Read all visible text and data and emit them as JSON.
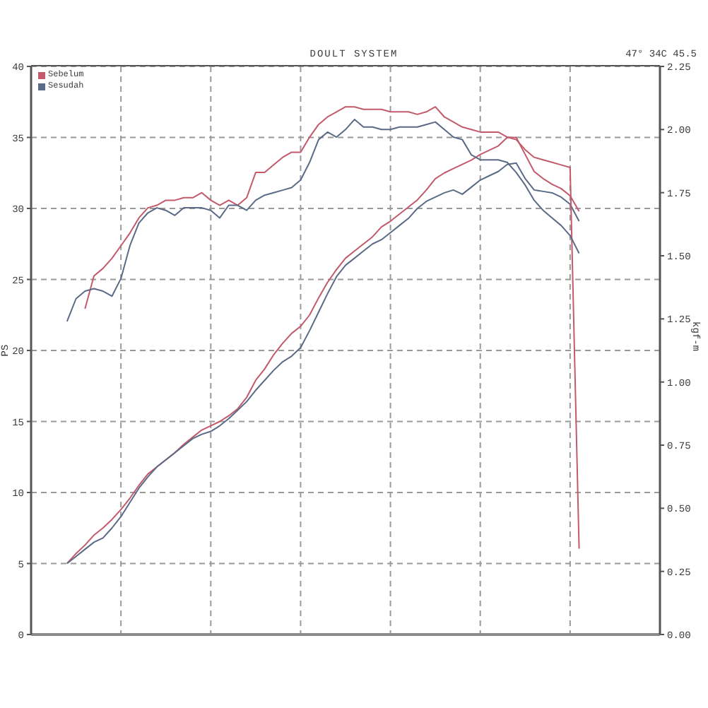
{
  "chart_data": {
    "type": "line",
    "title": "DOULT SYSTEM",
    "annotations": [
      "47° 34C 45.5"
    ],
    "ylabel": "PS",
    "y2label": "kgf-m",
    "categories": [
      null,
      null,
      null,
      null,
      null,
      null,
      null,
      null,
      null,
      null,
      null,
      null,
      null,
      null,
      null,
      null,
      null,
      null,
      null,
      null,
      null,
      null,
      null,
      null,
      null,
      null,
      null,
      null,
      null,
      null,
      null,
      null,
      null,
      null,
      null,
      null,
      null,
      null,
      null,
      null,
      null,
      null,
      null,
      null,
      null,
      null,
      null,
      null,
      null,
      null,
      null,
      null,
      null,
      null,
      null,
      null,
      null,
      null,
      null,
      null,
      null,
      null,
      null,
      null,
      null,
      null,
      null,
      null,
      null,
      null,
      null
    ],
    "series": [
      {
        "name": "Sebelum",
        "color": "#c25a6c",
        "values": [
          null,
          null,
          null,
          null,
          5.0,
          5.7,
          6.3,
          7.0,
          7.5,
          8.1,
          8.8,
          9.6,
          10.5,
          11.3,
          11.8,
          12.3,
          12.8,
          13.4,
          13.9,
          14.4,
          14.7,
          15.0,
          15.4,
          15.9,
          16.7,
          17.9,
          18.7,
          19.7,
          20.5,
          21.2,
          21.7,
          22.5,
          23.7,
          24.8,
          25.7,
          26.5,
          27.0,
          27.5,
          28.0,
          28.7,
          29.1,
          29.6,
          30.1,
          30.6,
          31.3,
          32.1,
          32.5,
          32.8,
          33.1,
          33.4,
          33.8,
          34.1,
          34.4,
          35.0,
          35.0,
          33.8,
          32.6,
          32.1,
          31.7,
          31.4,
          30.9,
          29.8,
          null,
          null,
          null,
          null,
          null,
          null,
          null,
          null,
          null
        ]
      },
      {
        "name": "Sesudah",
        "color": "#5b6a86",
        "values": [
          null,
          null,
          null,
          null,
          5.0,
          5.5,
          6.0,
          6.5,
          6.8,
          7.5,
          8.3,
          9.3,
          10.3,
          11.1,
          11.8,
          12.3,
          12.8,
          13.3,
          13.8,
          14.1,
          14.3,
          14.7,
          15.2,
          15.8,
          16.4,
          17.2,
          17.9,
          18.6,
          19.2,
          19.6,
          20.2,
          21.4,
          22.7,
          24.0,
          25.2,
          26.0,
          26.5,
          27.0,
          27.5,
          27.8,
          28.3,
          28.8,
          29.3,
          30.0,
          30.5,
          30.8,
          31.1,
          31.3,
          31.0,
          31.5,
          32.0,
          32.3,
          32.6,
          33.1,
          33.2,
          32.1,
          31.3,
          31.2,
          31.1,
          30.8,
          30.3,
          29.1,
          null,
          null,
          null,
          null,
          null,
          null,
          null,
          null,
          null
        ]
      },
      {
        "color": "#c25a6c",
        "axis": "y2",
        "values": [
          null,
          null,
          null,
          null,
          null,
          null,
          1.29,
          1.42,
          1.45,
          1.49,
          1.54,
          1.59,
          1.65,
          1.69,
          1.7,
          1.72,
          1.72,
          1.73,
          1.73,
          1.75,
          1.72,
          1.7,
          1.72,
          1.7,
          1.73,
          1.83,
          1.83,
          1.86,
          1.89,
          1.91,
          1.91,
          1.97,
          2.02,
          2.05,
          2.07,
          2.09,
          2.09,
          2.08,
          2.08,
          2.08,
          2.07,
          2.07,
          2.07,
          2.06,
          2.07,
          2.09,
          2.05,
          2.03,
          2.01,
          2.0,
          1.99,
          1.99,
          1.99,
          1.97,
          1.96,
          1.92,
          1.89,
          1.88,
          1.87,
          1.86,
          1.85,
          0.34,
          null,
          null,
          null,
          null,
          null,
          null,
          null,
          null,
          null
        ]
      },
      {
        "color": "#5b6a86",
        "axis": "y2",
        "values": [
          null,
          null,
          null,
          null,
          1.24,
          1.33,
          1.36,
          1.37,
          1.36,
          1.34,
          1.41,
          1.54,
          1.63,
          1.67,
          1.69,
          1.68,
          1.66,
          1.69,
          1.69,
          1.69,
          1.68,
          1.65,
          1.7,
          1.7,
          1.68,
          1.72,
          1.74,
          1.75,
          1.76,
          1.77,
          1.8,
          1.87,
          1.96,
          1.99,
          1.97,
          2.0,
          2.04,
          2.01,
          2.01,
          2.0,
          2.0,
          2.01,
          2.01,
          2.01,
          2.02,
          2.03,
          2.0,
          1.97,
          1.96,
          1.9,
          1.88,
          1.88,
          1.88,
          1.87,
          1.83,
          1.78,
          1.72,
          1.68,
          1.65,
          1.62,
          1.58,
          1.51,
          null,
          null,
          null,
          null,
          null,
          null,
          null,
          null,
          null
        ]
      }
    ],
    "ylim": [
      0,
      40
    ],
    "yticks": [
      0,
      5,
      10,
      15,
      20,
      25,
      30,
      35,
      40
    ],
    "y2lim": [
      0,
      2.25
    ],
    "y2ticks": [
      {
        "value": 0,
        "label": "0.00"
      },
      {
        "value": 0.25,
        "label": "0.25"
      },
      {
        "value": 0.5,
        "label": "0.50"
      },
      {
        "value": 0.75,
        "label": "0.75"
      },
      {
        "value": 1,
        "label": "1.00"
      },
      {
        "value": 1.25,
        "label": "1.25"
      },
      {
        "value": 1.5,
        "label": "1.50"
      },
      {
        "value": 1.75,
        "label": "1.75"
      },
      {
        "value": 2,
        "label": "2.00"
      },
      {
        "value": 2.25,
        "label": "2.25"
      }
    ],
    "grid": true,
    "legend": "top left"
  }
}
